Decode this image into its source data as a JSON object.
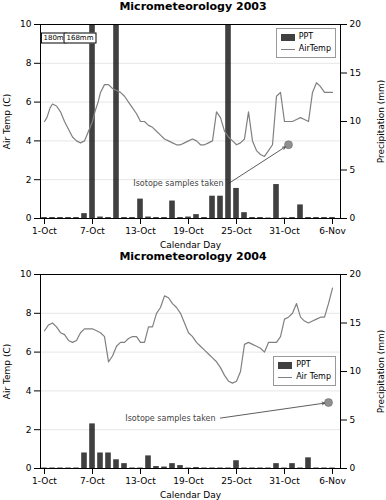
{
  "chart_data": [
    {
      "type": "combo",
      "title": "Micrometeorology 2003",
      "xlabel": "Calendar Day",
      "ylabel": "Air Temp (C)",
      "y2label": "Precipitation (mm)",
      "xlim": [
        -0.5,
        37
      ],
      "xticks": [
        {
          "value": 0,
          "label": "1-Oct"
        },
        {
          "value": 6,
          "label": "7-Oct"
        },
        {
          "value": 12,
          "label": "13-Oct"
        },
        {
          "value": 18,
          "label": "19-Oct"
        },
        {
          "value": 24,
          "label": "25-Oct"
        },
        {
          "value": 30,
          "label": "31-Oct"
        },
        {
          "value": 36,
          "label": "6-Nov"
        }
      ],
      "ylim": [
        0,
        10
      ],
      "yticks": [
        0,
        2,
        4,
        6,
        8,
        10
      ],
      "y2lim": [
        0,
        20
      ],
      "y2ticks": [
        0,
        5,
        10,
        15,
        20
      ],
      "grid": true,
      "legend": "upper right",
      "series": [
        {
          "name": "PPT",
          "type": "bar",
          "axis": "y2",
          "color": "#404040",
          "x": [
            0,
            1,
            2,
            3,
            4,
            5,
            6,
            7,
            8,
            9,
            10,
            11,
            12,
            13,
            14,
            15,
            16,
            17,
            18,
            19,
            20,
            21,
            22,
            23,
            24,
            25,
            26,
            27,
            28,
            29,
            30,
            31,
            32,
            33,
            34,
            35,
            36
          ],
          "values": [
            0.1,
            0.1,
            0.1,
            0.1,
            0.1,
            0.5,
            20.0,
            0.15,
            0.1,
            20.0,
            0.1,
            0.1,
            2.0,
            0.15,
            0.1,
            0.1,
            1.8,
            0.1,
            0.15,
            0.4,
            0.1,
            2.3,
            2.3,
            20.0,
            3.1,
            0.6,
            0.1,
            0.1,
            0.05,
            3.5,
            0.05,
            0.1,
            1.4,
            0.1,
            0.1,
            0.1,
            0.1
          ]
        },
        {
          "name": "AirTemp",
          "type": "line",
          "color": "#808080",
          "x": [
            0,
            0.3,
            0.7,
            1.0,
            1.5,
            2.0,
            2.5,
            3.0,
            3.5,
            4.0,
            4.5,
            5.0,
            5.5,
            6.0,
            6.3,
            6.7,
            7.0,
            7.5,
            8.0,
            8.5,
            9.0,
            9.5,
            10.0,
            10.5,
            11.0,
            11.5,
            12.0,
            12.5,
            13.0,
            13.5,
            14.0,
            14.5,
            15.0,
            15.5,
            16.0,
            16.5,
            17.0,
            17.5,
            18.0,
            18.5,
            19.0,
            19.5,
            20.0,
            20.5,
            21.0,
            21.5,
            22.0,
            22.5,
            23.0,
            23.5,
            24.0,
            24.5,
            25.0,
            25.5,
            26.0,
            26.5,
            27.0,
            27.5,
            28.0,
            28.5,
            29.0,
            29.5,
            30.0,
            30.5,
            31.0,
            31.5,
            32.0,
            32.5,
            33.0,
            33.5,
            34.0,
            34.5,
            35.0,
            35.5,
            36.0
          ],
          "values": [
            5.0,
            5.2,
            5.7,
            5.9,
            5.8,
            5.5,
            5.0,
            4.6,
            4.2,
            4.0,
            3.9,
            4.0,
            4.5,
            5.0,
            5.5,
            6.0,
            6.5,
            6.9,
            6.9,
            6.7,
            6.6,
            6.5,
            6.3,
            6.0,
            5.7,
            5.4,
            5.0,
            5.0,
            4.8,
            4.7,
            4.5,
            4.3,
            4.1,
            4.0,
            3.9,
            3.8,
            3.8,
            3.9,
            4.0,
            4.1,
            4.0,
            3.8,
            3.8,
            3.9,
            4.0,
            5.5,
            5.2,
            4.5,
            4.2,
            4.0,
            3.8,
            3.9,
            4.1,
            5.5,
            4.0,
            3.5,
            3.3,
            3.2,
            3.5,
            3.8,
            6.3,
            6.5,
            5.0,
            5.0,
            5.0,
            5.1,
            5.2,
            5.1,
            5.0,
            6.5,
            7.0,
            6.8,
            6.5,
            6.5,
            6.5
          ]
        },
        {
          "type": "scatter",
          "color": "#909090",
          "x": [
            30.5
          ],
          "values": [
            3.8
          ]
        }
      ],
      "annotations": [
        {
          "text": "Isotope samples taken",
          "x": 23.0,
          "y": 1.8,
          "arrow_to": [
            30.5,
            3.8
          ]
        },
        {
          "text": "180m",
          "x": 1.2,
          "y": 9.3
        },
        {
          "text": "168mm",
          "x": 4.5,
          "y": 9.3
        }
      ]
    },
    {
      "type": "combo",
      "title": "Micrometeorology 2004",
      "xlabel": "Calendar Day",
      "ylabel": "Air Temp (C)",
      "y2label": "Precipitation (mm)",
      "xlim": [
        -0.5,
        37
      ],
      "xticks": [
        {
          "value": 0,
          "label": "1-Oct"
        },
        {
          "value": 6,
          "label": "7-Oct"
        },
        {
          "value": 12,
          "label": "13-Oct"
        },
        {
          "value": 18,
          "label": "19-Oct"
        },
        {
          "value": 24,
          "label": "25-Oct"
        },
        {
          "value": 30,
          "label": "31-Oct"
        },
        {
          "value": 36,
          "label": "6-Nov"
        }
      ],
      "ylim": [
        0,
        10
      ],
      "yticks": [
        0,
        2,
        4,
        6,
        8,
        10
      ],
      "y2lim": [
        0,
        20
      ],
      "y2ticks": [
        0,
        5,
        10,
        15,
        20
      ],
      "grid": true,
      "legend": "center right",
      "series": [
        {
          "name": "PPT",
          "type": "bar",
          "axis": "y2",
          "color": "#404040",
          "x": [
            0,
            1,
            2,
            3,
            4,
            5,
            6,
            7,
            8,
            9,
            10,
            11,
            12,
            13,
            14,
            15,
            16,
            17,
            18,
            19,
            20,
            21,
            22,
            23,
            24,
            25,
            26,
            27,
            28,
            29,
            30,
            31,
            32,
            33,
            34,
            35,
            36
          ],
          "values": [
            0.05,
            0.05,
            0.05,
            0.05,
            0.05,
            1.6,
            4.6,
            1.6,
            1.6,
            0.9,
            0.5,
            0.05,
            0.05,
            1.3,
            0.2,
            0.15,
            0.5,
            0.3,
            0.05,
            0.1,
            0.05,
            0.05,
            0.05,
            0.05,
            0.8,
            0.05,
            0.05,
            0.05,
            0.05,
            0.5,
            0.05,
            0.5,
            0.05,
            1.1,
            0.05,
            0.05,
            0.05
          ]
        },
        {
          "name": "Air Temp",
          "type": "line",
          "color": "#808080",
          "x": [
            0,
            0.5,
            1.0,
            1.5,
            2.0,
            2.5,
            3.0,
            3.5,
            4.0,
            4.5,
            5.0,
            5.5,
            6.0,
            6.5,
            7.0,
            7.5,
            8.0,
            8.5,
            9.0,
            9.5,
            10.0,
            10.5,
            11.0,
            11.5,
            12.0,
            12.5,
            13.0,
            13.5,
            14.0,
            14.5,
            15.0,
            15.5,
            16.0,
            16.5,
            17.0,
            17.5,
            18.0,
            18.5,
            19.0,
            19.5,
            20.0,
            20.5,
            21.0,
            21.5,
            22.0,
            22.5,
            23.0,
            23.5,
            24.0,
            24.5,
            25.0,
            25.5,
            26.0,
            26.5,
            27.0,
            27.5,
            28.0,
            28.5,
            29.0,
            29.5,
            30.0,
            30.5,
            31.0,
            31.5,
            32.0,
            32.5,
            33.0,
            33.5,
            34.0,
            34.5,
            35.0,
            35.5,
            36.0
          ],
          "values": [
            7.1,
            7.4,
            7.5,
            7.3,
            7.0,
            6.9,
            6.6,
            6.5,
            6.6,
            7.0,
            7.2,
            7.2,
            7.2,
            7.1,
            7.0,
            6.8,
            5.5,
            5.8,
            6.3,
            6.5,
            6.5,
            6.7,
            6.8,
            6.8,
            6.5,
            6.5,
            7.3,
            7.3,
            8.0,
            8.3,
            8.9,
            8.8,
            8.5,
            8.3,
            8.0,
            7.5,
            7.0,
            6.8,
            6.5,
            6.3,
            6.1,
            5.9,
            5.7,
            5.5,
            5.2,
            4.8,
            4.5,
            4.4,
            4.5,
            5.0,
            6.4,
            6.5,
            6.4,
            6.3,
            6.2,
            6.0,
            6.5,
            6.5,
            6.5,
            6.8,
            7.7,
            7.8,
            8.0,
            8.5,
            7.8,
            7.6,
            7.5,
            7.6,
            7.7,
            7.8,
            7.8,
            8.5,
            9.3
          ]
        },
        {
          "type": "scatter",
          "color": "#909090",
          "x": [
            35.5
          ],
          "values": [
            3.4
          ]
        }
      ],
      "annotations": [
        {
          "text": "Isotope samples taken",
          "x": 22.0,
          "y": 2.6,
          "arrow_to": [
            35.5,
            3.4
          ]
        }
      ]
    }
  ]
}
